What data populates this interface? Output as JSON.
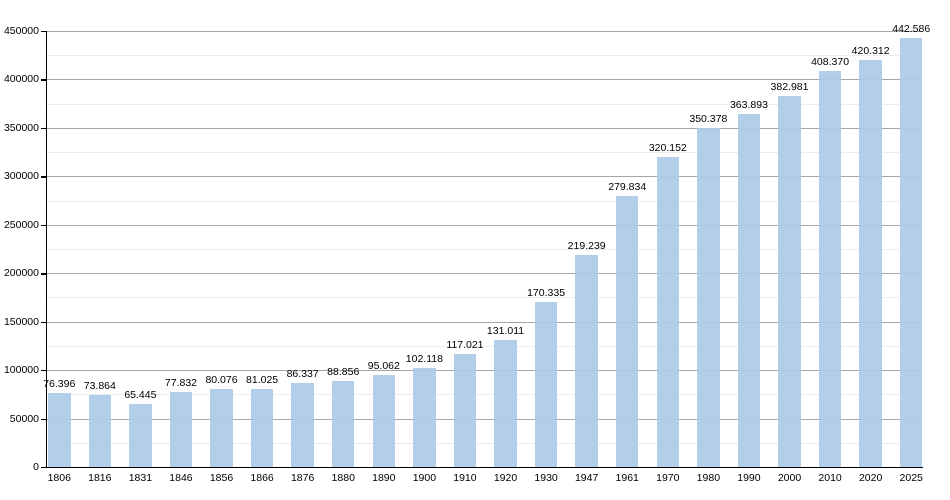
{
  "chart_data": {
    "type": "bar",
    "title": "",
    "xlabel": "",
    "ylabel": "",
    "categories": [
      "1806",
      "1816",
      "1831",
      "1846",
      "1856",
      "1866",
      "1876",
      "1880",
      "1890",
      "1900",
      "1910",
      "1920",
      "1930",
      "1947",
      "1961",
      "1970",
      "1980",
      "1990",
      "2000",
      "2010",
      "2020",
      "2025"
    ],
    "values": [
      76396,
      73864,
      65445,
      77832,
      80076,
      81025,
      86337,
      88856,
      95062,
      102118,
      117021,
      131011,
      170335,
      219239,
      279834,
      320152,
      350378,
      363893,
      382981,
      408370,
      420312,
      442586
    ],
    "bar_labels": [
      "76.396",
      "73.864",
      "65.445",
      "77.832",
      "80.076",
      "81.025",
      "86.337",
      "88.856",
      "95.062",
      "102.118",
      "117.021",
      "131.011",
      "170.335",
      "219.239",
      "279.834",
      "320.152",
      "350.378",
      "363.893",
      "382.981",
      "408.370",
      "420.312",
      "442.586"
    ],
    "ylim": [
      0,
      450000
    ],
    "ytick_step": 50000,
    "minor_ytick_step": 25000,
    "ytick_labels": [
      "0",
      "50000",
      "100000",
      "150000",
      "200000",
      "250000",
      "300000",
      "350000",
      "400000",
      "450000"
    ],
    "grid": true,
    "legend": false,
    "colors": {
      "bar": "rgba(173, 202, 230, 0.93)",
      "major_grid": "#a6a6a6",
      "minor_grid": "#ececec",
      "axis": "#000000",
      "text": "#000000",
      "background": "#ffffff"
    }
  }
}
